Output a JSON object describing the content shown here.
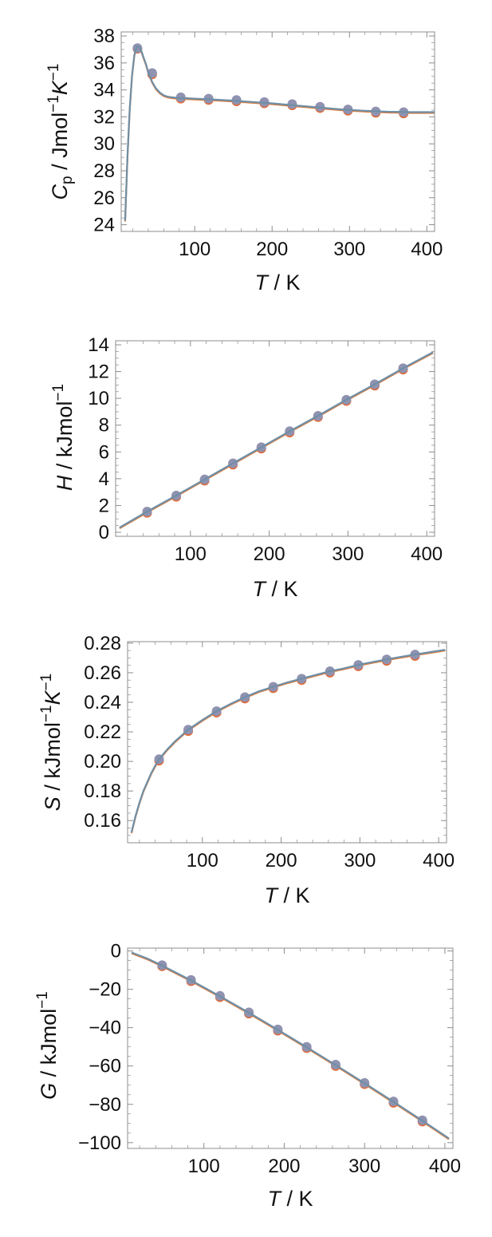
{
  "chart_data": [
    {
      "type": "line",
      "panel": "Cp",
      "xlabel": "T / K",
      "xlabel_var": "T",
      "xlabel_unit": " / K",
      "ylabel": "Cp / Jmol-1K-1",
      "ylabel_var": "C",
      "ylabel_sub": "p",
      "ylabel_unit": " / Jmol",
      "ylabel_exp1": "−1",
      "ylabel_var2": "K",
      "ylabel_exp2": "−1",
      "xlim": [
        5,
        410
      ],
      "ylim": [
        23.5,
        38.3
      ],
      "xticks": [
        100,
        200,
        300,
        400
      ],
      "yticks": [
        24,
        26,
        28,
        30,
        32,
        34,
        36,
        38
      ],
      "ytick_labels": [
        "24",
        "26",
        "28",
        "30",
        "32",
        "34",
        "36",
        "38"
      ],
      "curve": {
        "x": [
          10,
          13,
          16,
          19,
          22,
          25,
          28,
          31,
          34,
          37,
          40,
          45,
          50,
          55,
          60,
          65,
          70,
          75,
          80,
          90,
          100,
          120,
          150,
          180,
          200,
          230,
          260,
          290,
          320,
          350,
          380,
          410
        ],
        "y": [
          24.3,
          29.0,
          32.6,
          35.1,
          36.6,
          37.2,
          37.2,
          36.9,
          36.4,
          35.9,
          35.3,
          34.6,
          34.1,
          33.8,
          33.6,
          33.5,
          33.45,
          33.42,
          33.4,
          33.38,
          33.35,
          33.3,
          33.2,
          33.08,
          33.0,
          32.85,
          32.7,
          32.55,
          32.45,
          32.38,
          32.35,
          32.35
        ]
      },
      "series": [
        {
          "x": [
            26,
            45,
            82,
            118,
            154,
            190,
            226,
            262,
            298,
            334,
            370
          ],
          "y": [
            37.05,
            35.15,
            33.35,
            33.25,
            33.15,
            33.0,
            32.85,
            32.65,
            32.45,
            32.3,
            32.25
          ]
        },
        {
          "x": [
            26,
            45,
            82,
            118,
            154,
            190,
            226,
            262,
            298,
            334,
            370
          ],
          "y": [
            37.1,
            35.25,
            33.45,
            33.35,
            33.25,
            33.1,
            32.95,
            32.75,
            32.55,
            32.4,
            32.35
          ]
        }
      ]
    },
    {
      "type": "line",
      "panel": "H",
      "xlabel": "T / K",
      "xlabel_var": "T",
      "xlabel_unit": " / K",
      "ylabel": "H / kJmol-1",
      "ylabel_var": "H",
      "ylabel_unit": " / kJmol",
      "ylabel_exp1": "−1",
      "xlim": [
        5,
        410
      ],
      "ylim": [
        -0.3,
        14.3
      ],
      "xticks": [
        100,
        200,
        300,
        400
      ],
      "yticks": [
        0,
        2,
        4,
        6,
        8,
        10,
        12,
        14
      ],
      "ytick_labels": [
        "0",
        "2",
        "4",
        "6",
        "8",
        "10",
        "12",
        "14"
      ],
      "curve": {
        "x": [
          10,
          45,
          82,
          118,
          154,
          190,
          226,
          262,
          298,
          334,
          370,
          408
        ],
        "y": [
          0.35,
          1.55,
          2.75,
          3.95,
          5.15,
          6.35,
          7.55,
          8.7,
          9.9,
          11.05,
          12.25,
          13.45
        ]
      },
      "series": [
        {
          "x": [
            45,
            82,
            118,
            154,
            190,
            226,
            262,
            298,
            334,
            370
          ],
          "y": [
            1.45,
            2.65,
            3.85,
            5.05,
            6.25,
            7.45,
            8.6,
            9.8,
            10.95,
            12.15
          ]
        },
        {
          "x": [
            45,
            82,
            118,
            154,
            190,
            226,
            262,
            298,
            334,
            370
          ],
          "y": [
            1.55,
            2.75,
            3.95,
            5.15,
            6.35,
            7.55,
            8.7,
            9.9,
            11.05,
            12.25
          ]
        }
      ]
    },
    {
      "type": "line",
      "panel": "S",
      "xlabel": "T / K",
      "xlabel_var": "T",
      "xlabel_unit": " / K",
      "ylabel": "S / kJmol-1K-1",
      "ylabel_var": "S",
      "ylabel_unit": " / kJmol",
      "ylabel_exp1": "−1",
      "ylabel_var2": "K",
      "ylabel_exp2": "−1",
      "xlim": [
        5,
        410
      ],
      "ylim": [
        0.145,
        0.281
      ],
      "xticks": [
        100,
        200,
        300,
        400
      ],
      "yticks": [
        0.16,
        0.18,
        0.2,
        0.22,
        0.24,
        0.26,
        0.28
      ],
      "ytick_labels": [
        "0.16",
        "0.18",
        "0.20",
        "0.22",
        "0.24",
        "0.26",
        "0.28"
      ],
      "curve": {
        "x": [
          10,
          15,
          20,
          25,
          30,
          35,
          40,
          45,
          55,
          65,
          82,
          100,
          118,
          136,
          154,
          172,
          190,
          208,
          226,
          244,
          262,
          280,
          298,
          316,
          334,
          352,
          370,
          390,
          408
        ],
        "y": [
          0.152,
          0.163,
          0.172,
          0.18,
          0.186,
          0.192,
          0.197,
          0.2015,
          0.208,
          0.2135,
          0.2215,
          0.228,
          0.234,
          0.239,
          0.2435,
          0.2475,
          0.2505,
          0.2535,
          0.256,
          0.2585,
          0.261,
          0.263,
          0.2653,
          0.2672,
          0.269,
          0.2707,
          0.2723,
          0.274,
          0.2755
        ]
      },
      "series": [
        {
          "x": [
            45,
            82,
            118,
            154,
            190,
            226,
            262,
            298,
            334,
            370
          ],
          "y": [
            0.2005,
            0.2205,
            0.233,
            0.2425,
            0.2495,
            0.255,
            0.26,
            0.2643,
            0.268,
            0.2713
          ]
        },
        {
          "x": [
            45,
            82,
            118,
            154,
            190,
            226,
            262,
            298,
            334,
            370
          ],
          "y": [
            0.2015,
            0.2215,
            0.234,
            0.2435,
            0.2505,
            0.256,
            0.261,
            0.2653,
            0.269,
            0.2723
          ]
        }
      ]
    },
    {
      "type": "line",
      "panel": "G",
      "xlabel": "T / K",
      "xlabel_var": "T",
      "xlabel_unit": " / K",
      "ylabel": "G / kJmol-1",
      "ylabel_var": "G",
      "ylabel_unit": " / kJmol",
      "ylabel_exp1": "−1",
      "xlim": [
        5,
        410
      ],
      "ylim": [
        -103,
        1.5
      ],
      "xticks": [
        100,
        200,
        300,
        400
      ],
      "yticks": [
        0,
        -20,
        -40,
        -60,
        -80,
        -100
      ],
      "ytick_labels": [
        "0",
        "−20",
        "−40",
        "−60",
        "−80",
        "−100"
      ],
      "curve": {
        "x": [
          10,
          30,
          48,
          84,
          120,
          156,
          192,
          228,
          264,
          300,
          336,
          372,
          405
        ],
        "y": [
          -0.8,
          -4.0,
          -7.6,
          -15.3,
          -23.6,
          -32.2,
          -41.1,
          -50.2,
          -59.5,
          -69.0,
          -78.7,
          -88.5,
          -97.8
        ]
      },
      "series": [
        {
          "x": [
            48,
            84,
            120,
            156,
            192,
            228,
            264,
            300,
            336,
            372
          ],
          "y": [
            -8.0,
            -15.8,
            -24.1,
            -32.7,
            -41.6,
            -50.7,
            -60.0,
            -69.5,
            -79.2,
            -89.0
          ]
        },
        {
          "x": [
            48,
            84,
            120,
            156,
            192,
            228,
            264,
            300,
            336,
            372
          ],
          "y": [
            -7.4,
            -15.1,
            -23.4,
            -32.0,
            -40.9,
            -50.0,
            -59.3,
            -68.8,
            -78.5,
            -88.3
          ]
        }
      ]
    }
  ]
}
